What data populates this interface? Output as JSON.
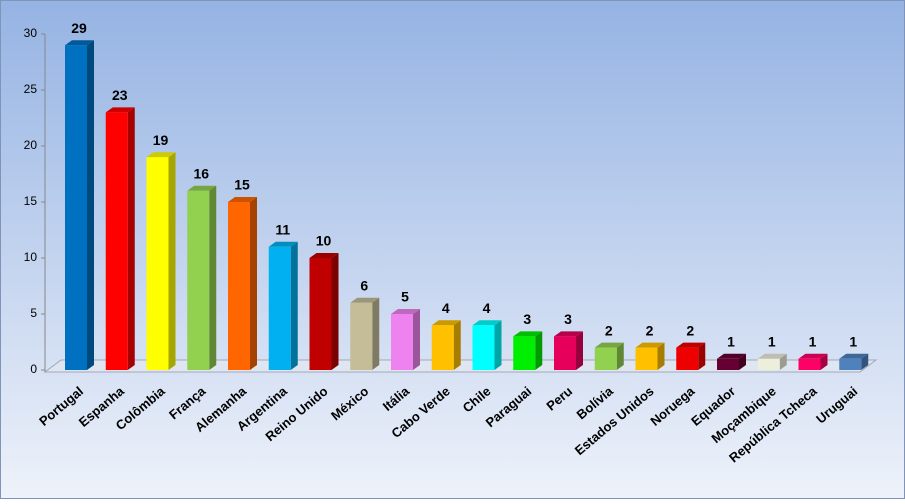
{
  "chart_data": {
    "type": "bar3d",
    "categories": [
      "Portugal",
      "Espanha",
      "Colômbia",
      "França",
      "Alemanha",
      "Argentina",
      "Reino Unido",
      "México",
      "Itália",
      "Cabo Verde",
      "Chile",
      "Paraguai",
      "Peru",
      "Bolívia",
      "Estados Unidos",
      "Noruega",
      "Equador",
      "Moçambique",
      "República Tcheca",
      "Uruguai"
    ],
    "values": [
      29,
      23,
      19,
      16,
      15,
      11,
      10,
      6,
      5,
      4,
      4,
      3,
      3,
      2,
      2,
      2,
      1,
      1,
      1,
      1
    ],
    "colors": [
      "#0070c0",
      "#ff0000",
      "#ffff00",
      "#92d050",
      "#ff6600",
      "#00b0f0",
      "#c00000",
      "#c4bd97",
      "#ee82ee",
      "#ffc000",
      "#00ffff",
      "#00ee00",
      "#e6005c",
      "#92d050",
      "#ffc000",
      "#ee0000",
      "#660033",
      "#eeeedd",
      "#ff0066",
      "#4f81bd"
    ],
    "ylim": [
      0,
      30
    ],
    "yticks": [
      0,
      5,
      10,
      15,
      20,
      25,
      30
    ],
    "grid": false
  }
}
